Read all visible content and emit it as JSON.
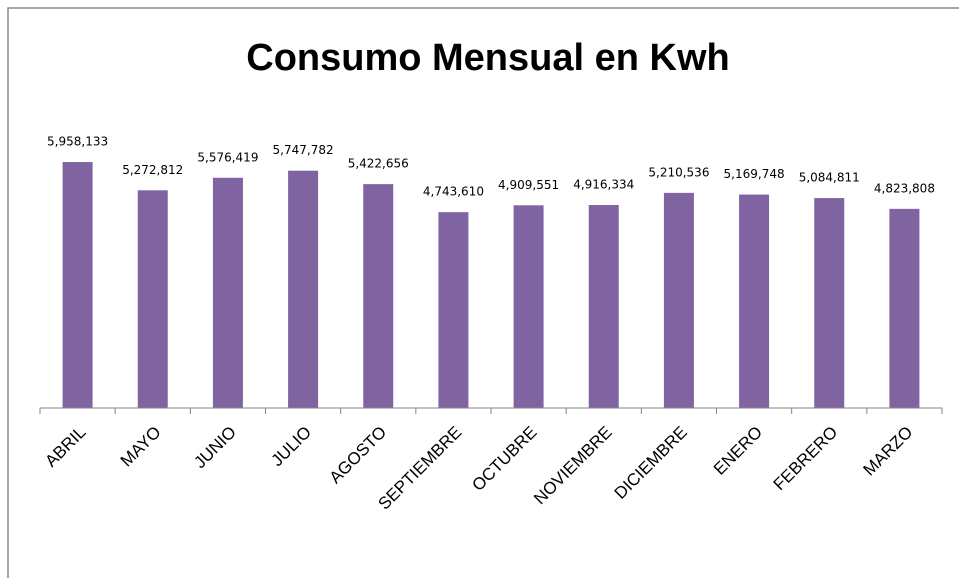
{
  "chart_data": {
    "type": "bar",
    "title": "Consumo Mensual en Kwh",
    "categories": [
      "ABRIL",
      "MAYO",
      "JUNIO",
      "JULIO",
      "AGOSTO",
      "SEPTIEMBRE",
      "OCTUBRE",
      "NOVIEMBRE",
      "DICIEMBRE",
      "ENERO",
      "FEBRERO",
      "MARZO"
    ],
    "values": [
      5958133,
      5272812,
      5576419,
      5747782,
      5422656,
      4743610,
      4909551,
      4916334,
      5210536,
      5169748,
      5084811,
      4823808
    ],
    "value_labels": [
      "5,958,133",
      "5,272,812",
      "5,576,419",
      "5,747,782",
      "5,422,656",
      "4,743,610",
      "4,909,551",
      "4,916,334",
      "5,210,536",
      "5,169,748",
      "5,084,811",
      "4,823,808"
    ],
    "color": "#8064a2",
    "ylim": [
      0,
      7000000
    ]
  }
}
